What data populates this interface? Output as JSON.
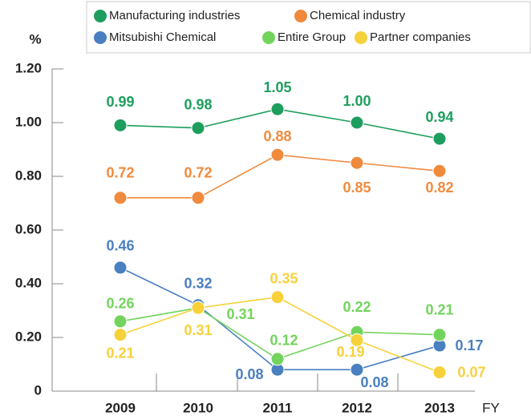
{
  "chart_data": {
    "type": "line",
    "y_label": "%",
    "x_label": "FY",
    "categories": [
      "2009",
      "2010",
      "2011",
      "2012",
      "2013"
    ],
    "ylim": [
      0,
      1.2
    ],
    "yticks": [
      0,
      {
        "value": 0.2,
        "label": "0.20"
      },
      {
        "value": 0.4,
        "label": "0.40"
      },
      {
        "value": 0.6,
        "label": "0.60"
      },
      {
        "value": 0.8,
        "label": "0.80"
      },
      {
        "value": 1.0,
        "label": "1.00"
      },
      {
        "value": 1.2,
        "label": "1.20"
      }
    ],
    "series": [
      {
        "name": "Manufacturing industries",
        "color": "#1e9e5e",
        "values": [
          0.99,
          0.98,
          1.05,
          1.0,
          0.94
        ],
        "value_labels": [
          "0.99",
          "0.98",
          "1.05",
          "1.00",
          "0.94"
        ]
      },
      {
        "name": "Chemical industry",
        "color": "#f08a3c",
        "values": [
          0.72,
          0.72,
          0.88,
          0.85,
          0.82
        ],
        "value_labels": [
          "0.72",
          "0.72",
          "0.88",
          "0.85",
          "0.82"
        ]
      },
      {
        "name": "Mitsubishi Chemical",
        "color": "#4a7fc0",
        "values": [
          0.46,
          0.32,
          0.08,
          0.08,
          0.17
        ],
        "value_labels": [
          "0.46",
          "0.32",
          "0.08",
          "0.08",
          "0.17"
        ]
      },
      {
        "name": "Entire Group",
        "color": "#72d45c",
        "values": [
          0.26,
          0.31,
          0.12,
          0.22,
          0.21
        ],
        "value_labels": [
          "0.26",
          "0.31",
          "0.12",
          "0.22",
          "0.21"
        ]
      },
      {
        "name": "Partner companies",
        "color": "#f7d13a",
        "values": [
          0.21,
          0.31,
          0.35,
          0.19,
          0.07
        ],
        "value_labels": [
          "0.21",
          "0.31",
          "0.35",
          "0.19",
          "0.07"
        ]
      }
    ]
  }
}
